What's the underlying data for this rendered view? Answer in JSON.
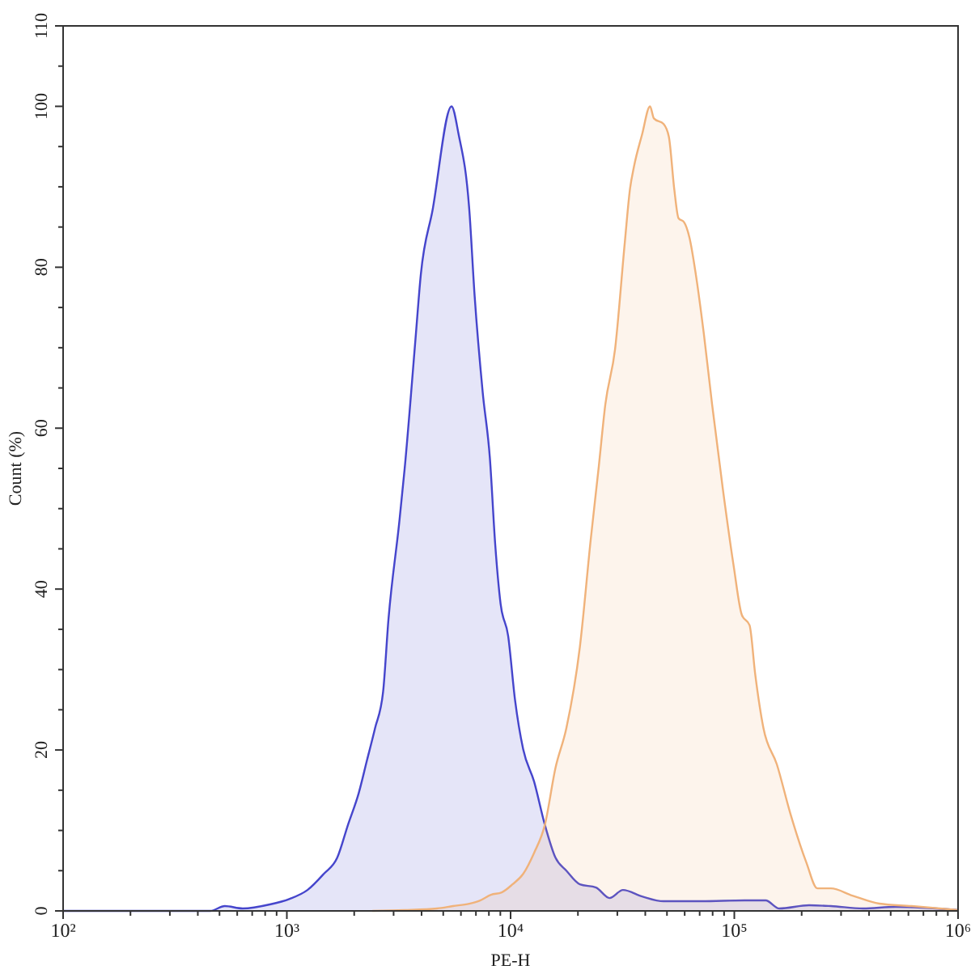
{
  "chart_data": {
    "type": "area",
    "xlabel": "PE-H",
    "ylabel": "Count (%)",
    "log": "x",
    "xlim": [
      100,
      1000000
    ],
    "ylim": [
      0,
      110
    ],
    "xticks": [
      {
        "value": 100,
        "label": "10²"
      },
      {
        "value": 200,
        "label": null
      },
      {
        "value": 300,
        "label": null
      },
      {
        "value": 400,
        "label": null
      },
      {
        "value": 500,
        "label": null
      },
      {
        "value": 600,
        "label": null
      },
      {
        "value": 700,
        "label": null
      },
      {
        "value": 800,
        "label": null
      },
      {
        "value": 900,
        "label": null
      },
      {
        "value": 1000,
        "label": "10³"
      },
      {
        "value": 2000,
        "label": null
      },
      {
        "value": 3000,
        "label": null
      },
      {
        "value": 4000,
        "label": null
      },
      {
        "value": 5000,
        "label": null
      },
      {
        "value": 6000,
        "label": null
      },
      {
        "value": 7000,
        "label": null
      },
      {
        "value": 8000,
        "label": null
      },
      {
        "value": 9000,
        "label": null
      },
      {
        "value": 10000,
        "label": "10⁴"
      },
      {
        "value": 20000,
        "label": null
      },
      {
        "value": 30000,
        "label": null
      },
      {
        "value": 40000,
        "label": null
      },
      {
        "value": 50000,
        "label": null
      },
      {
        "value": 60000,
        "label": null
      },
      {
        "value": 70000,
        "label": null
      },
      {
        "value": 80000,
        "label": null
      },
      {
        "value": 90000,
        "label": null
      },
      {
        "value": 100000,
        "label": "10⁵"
      },
      {
        "value": 200000,
        "label": null
      },
      {
        "value": 300000,
        "label": null
      },
      {
        "value": 400000,
        "label": null
      },
      {
        "value": 500000,
        "label": null
      },
      {
        "value": 600000,
        "label": null
      },
      {
        "value": 700000,
        "label": null
      },
      {
        "value": 800000,
        "label": null
      },
      {
        "value": 900000,
        "label": null
      },
      {
        "value": 1000000,
        "label": "10⁶"
      }
    ],
    "yticks": [
      0,
      {
        "value": 5,
        "label": null
      },
      {
        "value": 10,
        "label": null
      },
      {
        "value": 15,
        "label": null
      },
      20,
      {
        "value": 25,
        "label": null
      },
      {
        "value": 30,
        "label": null
      },
      {
        "value": 35,
        "label": null
      },
      40,
      {
        "value": 45,
        "label": null
      },
      {
        "value": 50,
        "label": null
      },
      {
        "value": 55,
        "label": null
      },
      60,
      {
        "value": 65,
        "label": null
      },
      {
        "value": 70,
        "label": null
      },
      {
        "value": 75,
        "label": null
      },
      80,
      {
        "value": 85,
        "label": null
      },
      {
        "value": 90,
        "label": null
      },
      {
        "value": 95,
        "label": null
      },
      100,
      {
        "value": 105,
        "label": null
      },
      110
    ],
    "series": [
      {
        "color": "#4545cc",
        "x": [
          100,
          276,
          455,
          528,
          635,
          839,
          1030,
          1237,
          1462,
          1679,
          1876,
          2098,
          2280,
          2478,
          2692,
          2845,
          3180,
          3360,
          3756,
          3970,
          4480,
          5445,
          5850,
          6540,
          6905,
          7510,
          8080,
          8540,
          9020,
          9750,
          10470,
          11380,
          12730,
          14230,
          15880,
          17750,
          20400,
          24100,
          27700,
          31800,
          38700,
          48300,
          71200,
          111000,
          138000,
          159000,
          216000,
          270000,
          376000,
          525000,
          1000000
        ],
        "values": [
          0,
          0,
          0,
          0.6,
          0.3,
          0.8,
          1.5,
          2.6,
          4.6,
          6.6,
          10.7,
          14.7,
          18.7,
          22.7,
          27.2,
          36.2,
          48.3,
          54.9,
          71,
          79.1,
          87.1,
          100,
          96.6,
          87.1,
          76.5,
          64.4,
          56.3,
          45.5,
          38.2,
          34.2,
          26.2,
          20.1,
          16.1,
          10.7,
          6.6,
          5,
          3.3,
          2.9,
          1.6,
          2.6,
          1.8,
          1.2,
          1.2,
          1.3,
          1.3,
          0.3,
          0.7,
          0.6,
          0.3,
          0.5,
          0.1
        ]
      },
      {
        "color": "#f0b27a",
        "x": [
          2410,
          3360,
          4690,
          5530,
          6540,
          7310,
          8170,
          9130,
          10200,
          11380,
          12730,
          14230,
          15880,
          17750,
          20400,
          22800,
          24800,
          26500,
          29300,
          32400,
          34200,
          35600,
          38700,
          42000,
          43700,
          48300,
          51000,
          53900,
          56300,
          59600,
          63000,
          67300,
          73100,
          79600,
          89000,
          99300,
          108000,
          117000,
          124000,
          135000,
          155000,
          178000,
          210000,
          235000,
          270000,
          337000,
          445000,
          620000,
          1000000
        ],
        "values": [
          0,
          0.1,
          0.3,
          0.6,
          0.9,
          1.3,
          2,
          2.3,
          3.3,
          4.6,
          7.2,
          10.7,
          17.8,
          22.7,
          32.8,
          46.1,
          55.3,
          62.9,
          69.8,
          83.1,
          89.8,
          92.5,
          96.5,
          100,
          98.5,
          97.8,
          96.2,
          89.7,
          86.1,
          85.6,
          83.7,
          79.1,
          71.7,
          62.9,
          52.3,
          42.9,
          36.8,
          35.5,
          29.4,
          22.7,
          18.2,
          12.1,
          6,
          2.8,
          2.8,
          1.9,
          0.9,
          0.6,
          0.1
        ]
      }
    ]
  }
}
